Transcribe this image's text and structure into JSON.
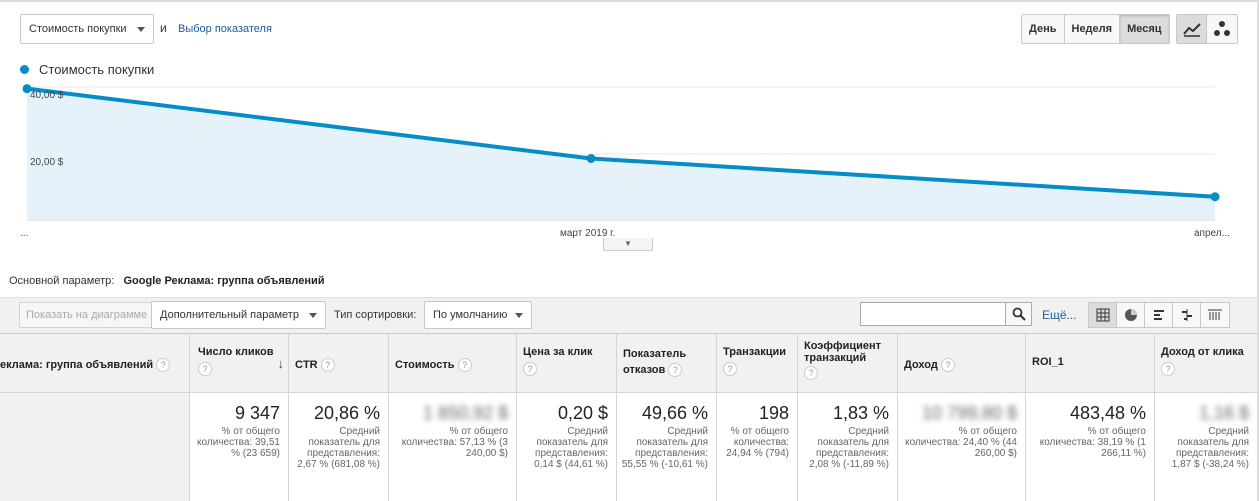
{
  "controls": {
    "metric_select": "Стоимость покупки",
    "and_text": "и",
    "metric_link": "Выбор показателя",
    "period_buttons": [
      "День",
      "Неделя",
      "Месяц"
    ],
    "active_period": "Месяц"
  },
  "chart_data": {
    "type": "line",
    "series": [
      {
        "name": "Стоимость покупки",
        "values": [
          39.5,
          18.5,
          7.0
        ]
      }
    ],
    "x": [
      "...",
      "март 2019 г.",
      "апрел..."
    ],
    "legend": "Стоимость покупки",
    "yticks": [
      "20,00 $",
      "40,00 $"
    ],
    "ytick_values": [
      20,
      40
    ],
    "ylim": [
      0,
      40
    ],
    "color": "#058dc7"
  },
  "primary_dim": {
    "label": "Основной параметр:",
    "value": "Google Реклама: группа объявлений"
  },
  "toolbar": {
    "show_on_chart": "Показать на диаграмме",
    "secondary_dim": "Дополнительный параметр",
    "sort_label": "Тип сортировки:",
    "sort_value": "По умолчанию",
    "search_placeholder": "",
    "more": "Ещё..."
  },
  "table": {
    "headers": [
      "екламa: группа объявлений",
      "Число кликов",
      "CTR",
      "Стоимость",
      "Цена за клик",
      "Показатель отказов",
      "Транзакции",
      "Коэффициент транзакций",
      "Доход",
      "ROI_1",
      "Доход от клика"
    ],
    "totals": [
      {
        "value": "9 347",
        "sub": "% от общего количества: 39,51 % (23 659)"
      },
      {
        "value": "20,86 %",
        "sub": "Средний показатель для представления: 2,67 % (681,08 %)"
      },
      {
        "value": "1 850,92 $",
        "sub": "% от общего количества: 57,13 % (3 240,00 $)",
        "blur": true
      },
      {
        "value": "0,20 $",
        "sub": "Средний показатель для представления: 0,14 $ (44,61 %)"
      },
      {
        "value": "49,66 %",
        "sub": "Средний показатель для представления: 55,55 % (-10,61 %)"
      },
      {
        "value": "198",
        "sub": "% от общего количества: 24,94 % (794)"
      },
      {
        "value": "1,83 %",
        "sub": "Средний показатель для представления: 2,08 % (-11,89 %)"
      },
      {
        "value": "10 799,80 $",
        "sub": "% от общего количества: 24,40 % (44 260,00 $)",
        "blur": true
      },
      {
        "value": "483,48 %",
        "sub": "% от общего количества: 38,19 % (1 266,11 %)"
      },
      {
        "value": "1,16 $",
        "sub": "Средний показатель для представления: 1,87 $ (-38,24 %)",
        "blur": true
      }
    ]
  }
}
